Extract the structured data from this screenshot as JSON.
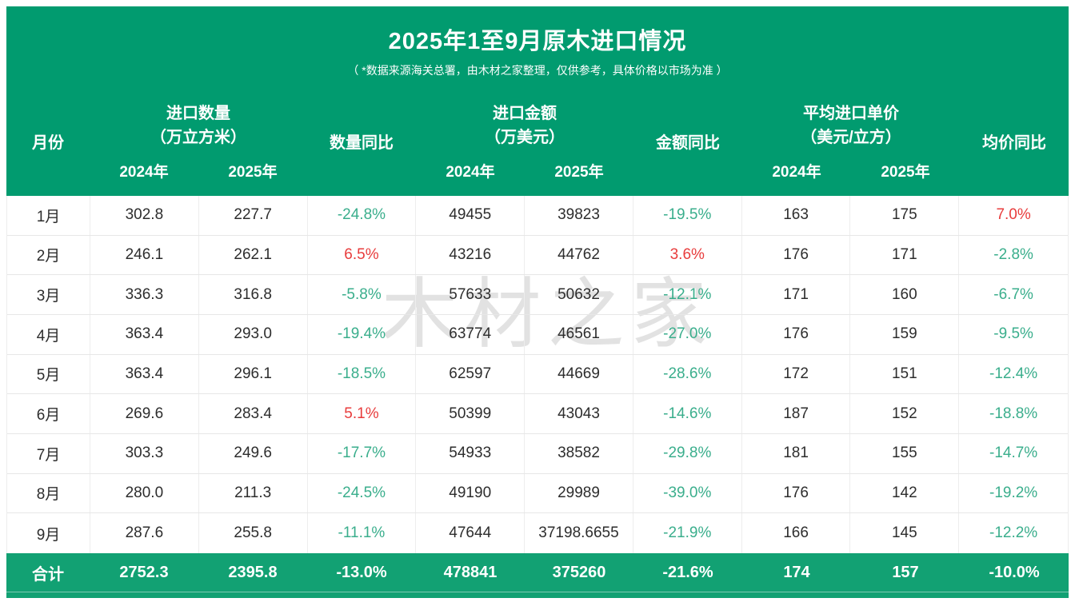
{
  "chart_data": {
    "type": "table",
    "title": "2025年1至9月原木进口情况",
    "subtitle": "（ *数据来源海关总署，由木材之家整理，仅供参考，具体价格以市场为准 ）",
    "watermark": "木材之家",
    "colors": {
      "header_green": "#019B6F",
      "total_green": "#12A173",
      "increase_red": "#E83C3C",
      "decrease_green": "#3AAE8C"
    },
    "header": {
      "month": "月份",
      "qty_title": "进口数量",
      "qty_unit": "（万立方米）",
      "qty_yoy": "数量同比",
      "amount_title": "进口金额",
      "amount_unit": "（万美元）",
      "amount_yoy": "金额同比",
      "price_title": "平均进口单价",
      "price_unit": "（美元/立方）",
      "price_yoy": "均价同比",
      "year_2024": "2024年",
      "year_2025": "2025年"
    },
    "rows": [
      {
        "month": "1月",
        "qty_2024": "302.8",
        "qty_2025": "227.7",
        "qty_yoy": "-24.8%",
        "qty_trend": "down",
        "amount_2024": "49455",
        "amount_2025": "39823",
        "amount_yoy": "-19.5%",
        "amount_trend": "down",
        "price_2024": "163",
        "price_2025": "175",
        "price_yoy": "7.0%",
        "price_trend": "up"
      },
      {
        "month": "2月",
        "qty_2024": "246.1",
        "qty_2025": "262.1",
        "qty_yoy": "6.5%",
        "qty_trend": "up",
        "amount_2024": "43216",
        "amount_2025": "44762",
        "amount_yoy": "3.6%",
        "amount_trend": "up",
        "price_2024": "176",
        "price_2025": "171",
        "price_yoy": "-2.8%",
        "price_trend": "down"
      },
      {
        "month": "3月",
        "qty_2024": "336.3",
        "qty_2025": "316.8",
        "qty_yoy": "-5.8%",
        "qty_trend": "down",
        "amount_2024": "57633",
        "amount_2025": "50632",
        "amount_yoy": "-12.1%",
        "amount_trend": "down",
        "price_2024": "171",
        "price_2025": "160",
        "price_yoy": "-6.7%",
        "price_trend": "down"
      },
      {
        "month": "4月",
        "qty_2024": "363.4",
        "qty_2025": "293.0",
        "qty_yoy": "-19.4%",
        "qty_trend": "down",
        "amount_2024": "63774",
        "amount_2025": "46561",
        "amount_yoy": "-27.0%",
        "amount_trend": "down",
        "price_2024": "176",
        "price_2025": "159",
        "price_yoy": "-9.5%",
        "price_trend": "down"
      },
      {
        "month": "5月",
        "qty_2024": "363.4",
        "qty_2025": "296.1",
        "qty_yoy": "-18.5%",
        "qty_trend": "down",
        "amount_2024": "62597",
        "amount_2025": "44669",
        "amount_yoy": "-28.6%",
        "amount_trend": "down",
        "price_2024": "172",
        "price_2025": "151",
        "price_yoy": "-12.4%",
        "price_trend": "down"
      },
      {
        "month": "6月",
        "qty_2024": "269.6",
        "qty_2025": "283.4",
        "qty_yoy": "5.1%",
        "qty_trend": "up",
        "amount_2024": "50399",
        "amount_2025": "43043",
        "amount_yoy": "-14.6%",
        "amount_trend": "down",
        "price_2024": "187",
        "price_2025": "152",
        "price_yoy": "-18.8%",
        "price_trend": "down"
      },
      {
        "month": "7月",
        "qty_2024": "303.3",
        "qty_2025": "249.6",
        "qty_yoy": "-17.7%",
        "qty_trend": "down",
        "amount_2024": "54933",
        "amount_2025": "38582",
        "amount_yoy": "-29.8%",
        "amount_trend": "down",
        "price_2024": "181",
        "price_2025": "155",
        "price_yoy": "-14.7%",
        "price_trend": "down"
      },
      {
        "month": "8月",
        "qty_2024": "280.0",
        "qty_2025": "211.3",
        "qty_yoy": "-24.5%",
        "qty_trend": "down",
        "amount_2024": "49190",
        "amount_2025": "29989",
        "amount_yoy": "-39.0%",
        "amount_trend": "down",
        "price_2024": "176",
        "price_2025": "142",
        "price_yoy": "-19.2%",
        "price_trend": "down"
      },
      {
        "month": "9月",
        "qty_2024": "287.6",
        "qty_2025": "255.8",
        "qty_yoy": "-11.1%",
        "qty_trend": "down",
        "amount_2024": "47644",
        "amount_2025": "37198.6655",
        "amount_yoy": "-21.9%",
        "amount_trend": "down",
        "price_2024": "166",
        "price_2025": "145",
        "price_yoy": "-12.2%",
        "price_trend": "down"
      }
    ],
    "total": {
      "label": "合计",
      "qty_2024": "2752.3",
      "qty_2025": "2395.8",
      "qty_yoy": "-13.0%",
      "amount_2024": "478841",
      "amount_2025": "375260",
      "amount_yoy": "-21.6%",
      "price_2024": "174",
      "price_2025": "157",
      "price_yoy": "-10.0%"
    }
  }
}
